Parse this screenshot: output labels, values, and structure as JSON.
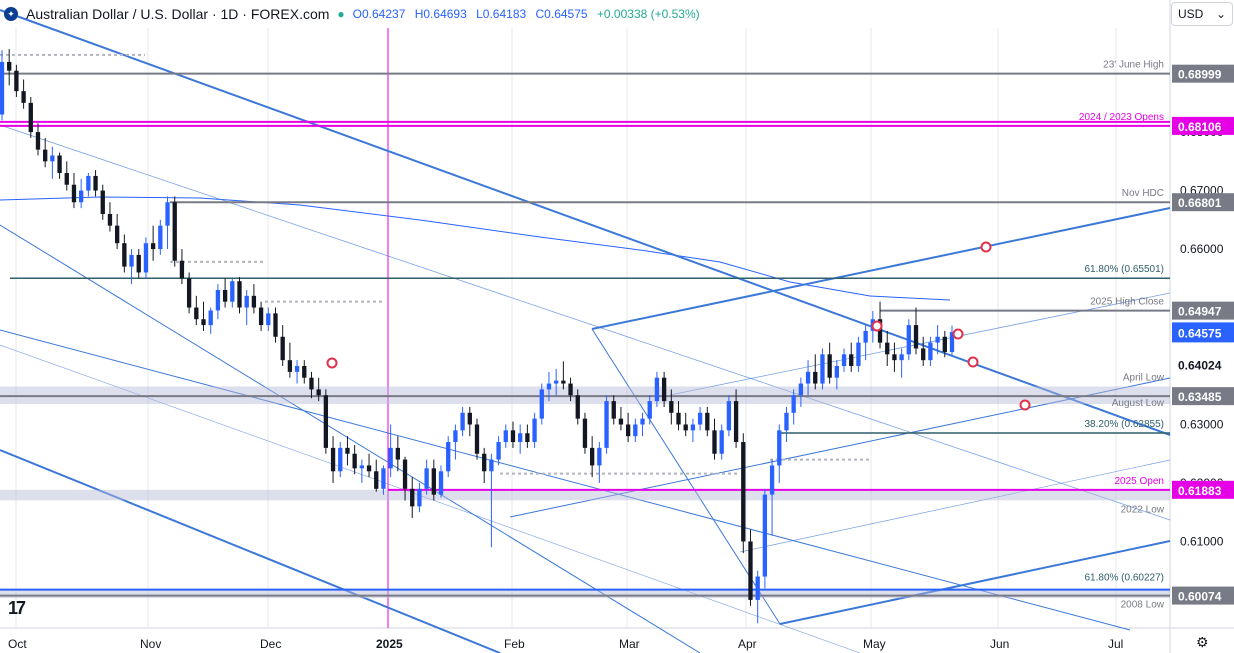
{
  "header": {
    "title": "Australian Dollar / U.S. Dollar · 1D · FOREX.com",
    "open": "O0.64237",
    "high": "H0.64693",
    "low": "L0.64183",
    "close": "C0.64575",
    "change": "+0.00338 (+0.53%)"
  },
  "currency_select": {
    "value": "USD"
  },
  "colors": {
    "up": "#2962ff",
    "down": "#131722",
    "trend": "#3c78d8",
    "magenta": "#e600e6",
    "teal": "#2f5f6a",
    "gray": "#787b86"
  },
  "chart_data": {
    "type": "candlestick",
    "ylim": [
      0.5952,
      0.6978
    ],
    "x_ticks": [
      "Oct",
      "Nov",
      "Dec",
      "2025",
      "Feb",
      "Mar",
      "Apr",
      "May",
      "Jun",
      "Jul"
    ],
    "y_ticks": [
      0.6,
      0.61,
      0.62,
      0.63,
      0.64,
      0.65,
      0.66,
      0.67,
      0.68
    ],
    "y_tick_labels": [
      "0.60000",
      "0.61000",
      "0.62000",
      "0.63000",
      "0.64000",
      "0.65000",
      "0.66000",
      "0.67000",
      "0.68000"
    ],
    "last_price": 0.64575,
    "last_price_label": "0.64575",
    "levels": [
      {
        "label": "23' June High",
        "value": 0.68999,
        "value_label": "0.68999",
        "color": "gray"
      },
      {
        "label": "2024 / 2023 Opens",
        "value": 0.68106,
        "value_label": "0.68106",
        "color": "magenta"
      },
      {
        "label": "Nov HDC",
        "value": 0.66801,
        "value_label": "0.66801",
        "color": "gray"
      },
      {
        "label": "61.80% (0.65501)",
        "value": 0.65501,
        "value_label": "",
        "color": "teal"
      },
      {
        "label": "2025 High Close",
        "value": 0.64947,
        "value_label": "0.64947",
        "color": "gray"
      },
      {
        "label": "",
        "value": 0.64024,
        "value_label": "0.64024",
        "color": "gray"
      },
      {
        "label": "April Low",
        "value": 0.6365,
        "value_label": "",
        "color": "gray"
      },
      {
        "label": "August Low",
        "value": 0.63485,
        "value_label": "0.63485",
        "color": "gray"
      },
      {
        "label": "38.20% (0.62855)",
        "value": 0.62855,
        "value_label": "",
        "color": "teal"
      },
      {
        "label": "2025 Open",
        "value": 0.61883,
        "value_label": "0.61883",
        "color": "magenta"
      },
      {
        "label": "2022 Low",
        "value": 0.61703,
        "value_label": "",
        "color": "gray"
      },
      {
        "label": "61.80% (0.60227)",
        "value": 0.60227,
        "value_label": "",
        "color": "teal"
      },
      {
        "label": "2008 Low",
        "value": 0.60074,
        "value_label": "0.60074",
        "color": "gray"
      }
    ],
    "candles": [
      [
        0.683,
        0.694,
        0.682,
        0.692
      ],
      [
        0.692,
        0.6942,
        0.688,
        0.6905
      ],
      [
        0.6905,
        0.6915,
        0.686,
        0.687
      ],
      [
        0.687,
        0.689,
        0.684,
        0.685
      ],
      [
        0.685,
        0.686,
        0.679,
        0.68
      ],
      [
        0.68,
        0.6815,
        0.676,
        0.677
      ],
      [
        0.677,
        0.679,
        0.674,
        0.675
      ],
      [
        0.675,
        0.6775,
        0.672,
        0.676
      ],
      [
        0.676,
        0.6765,
        0.672,
        0.673
      ],
      [
        0.673,
        0.675,
        0.67,
        0.671
      ],
      [
        0.671,
        0.673,
        0.667,
        0.668
      ],
      [
        0.668,
        0.672,
        0.667,
        0.67
      ],
      [
        0.67,
        0.673,
        0.669,
        0.6725
      ],
      [
        0.6725,
        0.6735,
        0.669,
        0.67
      ],
      [
        0.67,
        0.671,
        0.665,
        0.666
      ],
      [
        0.666,
        0.668,
        0.663,
        0.664
      ],
      [
        0.664,
        0.666,
        0.66,
        0.661
      ],
      [
        0.661,
        0.6625,
        0.656,
        0.657
      ],
      [
        0.657,
        0.66,
        0.654,
        0.659
      ],
      [
        0.659,
        0.66,
        0.655,
        0.656
      ],
      [
        0.656,
        0.662,
        0.655,
        0.661
      ],
      [
        0.661,
        0.664,
        0.658,
        0.66
      ],
      [
        0.66,
        0.665,
        0.659,
        0.664
      ],
      [
        0.664,
        0.669,
        0.66,
        0.668
      ],
      [
        0.668,
        0.669,
        0.657,
        0.658
      ],
      [
        0.658,
        0.66,
        0.654,
        0.655
      ],
      [
        0.655,
        0.656,
        0.649,
        0.65
      ],
      [
        0.65,
        0.652,
        0.647,
        0.648
      ],
      [
        0.648,
        0.651,
        0.646,
        0.647
      ],
      [
        0.647,
        0.65,
        0.6455,
        0.6495
      ],
      [
        0.6495,
        0.654,
        0.648,
        0.653
      ],
      [
        0.653,
        0.655,
        0.65,
        0.651
      ],
      [
        0.651,
        0.655,
        0.65,
        0.6545
      ],
      [
        0.6545,
        0.6552,
        0.649,
        0.65
      ],
      [
        0.65,
        0.653,
        0.647,
        0.652
      ],
      [
        0.652,
        0.654,
        0.649,
        0.65
      ],
      [
        0.65,
        0.651,
        0.646,
        0.647
      ],
      [
        0.647,
        0.65,
        0.646,
        0.649
      ],
      [
        0.649,
        0.65,
        0.644,
        0.645
      ],
      [
        0.645,
        0.647,
        0.64,
        0.641
      ],
      [
        0.641,
        0.644,
        0.638,
        0.639
      ],
      [
        0.639,
        0.641,
        0.637,
        0.64
      ],
      [
        0.64,
        0.641,
        0.637,
        0.638
      ],
      [
        0.638,
        0.639,
        0.6345,
        0.636
      ],
      [
        0.636,
        0.638,
        0.634,
        0.635
      ],
      [
        0.635,
        0.636,
        0.625,
        0.626
      ],
      [
        0.626,
        0.628,
        0.62,
        0.622
      ],
      [
        0.622,
        0.627,
        0.621,
        0.626
      ],
      [
        0.626,
        0.628,
        0.623,
        0.625
      ],
      [
        0.625,
        0.6265,
        0.6215,
        0.6225
      ],
      [
        0.6225,
        0.624,
        0.62,
        0.623
      ],
      [
        0.623,
        0.625,
        0.621,
        0.622
      ],
      [
        0.622,
        0.624,
        0.6185,
        0.619
      ],
      [
        0.619,
        0.623,
        0.618,
        0.6225
      ],
      [
        0.6225,
        0.63,
        0.621,
        0.626
      ],
      [
        0.626,
        0.628,
        0.622,
        0.624
      ],
      [
        0.624,
        0.6245,
        0.617,
        0.619
      ],
      [
        0.619,
        0.621,
        0.614,
        0.616
      ],
      [
        0.616,
        0.62,
        0.615,
        0.619
      ],
      [
        0.619,
        0.624,
        0.618,
        0.6225
      ],
      [
        0.6225,
        0.624,
        0.617,
        0.618
      ],
      [
        0.618,
        0.623,
        0.6175,
        0.622
      ],
      [
        0.622,
        0.628,
        0.621,
        0.627
      ],
      [
        0.627,
        0.63,
        0.624,
        0.629
      ],
      [
        0.629,
        0.633,
        0.628,
        0.632
      ],
      [
        0.632,
        0.633,
        0.628,
        0.63
      ],
      [
        0.63,
        0.631,
        0.624,
        0.625
      ],
      [
        0.625,
        0.626,
        0.62,
        0.622
      ],
      [
        0.622,
        0.625,
        0.609,
        0.624
      ],
      [
        0.624,
        0.628,
        0.623,
        0.627
      ],
      [
        0.627,
        0.63,
        0.626,
        0.629
      ],
      [
        0.629,
        0.6305,
        0.626,
        0.627
      ],
      [
        0.627,
        0.63,
        0.625,
        0.6285
      ],
      [
        0.6285,
        0.63,
        0.626,
        0.627
      ],
      [
        0.627,
        0.632,
        0.626,
        0.631
      ],
      [
        0.631,
        0.637,
        0.63,
        0.636
      ],
      [
        0.636,
        0.639,
        0.634,
        0.637
      ],
      [
        0.637,
        0.6395,
        0.635,
        0.6375
      ],
      [
        0.6375,
        0.6408,
        0.636,
        0.637
      ],
      [
        0.637,
        0.638,
        0.634,
        0.635
      ],
      [
        0.635,
        0.636,
        0.63,
        0.631
      ],
      [
        0.631,
        0.632,
        0.625,
        0.626
      ],
      [
        0.626,
        0.628,
        0.621,
        0.623
      ],
      [
        0.623,
        0.627,
        0.62,
        0.626
      ],
      [
        0.626,
        0.635,
        0.625,
        0.634
      ],
      [
        0.634,
        0.635,
        0.63,
        0.631
      ],
      [
        0.631,
        0.633,
        0.629,
        0.63
      ],
      [
        0.63,
        0.632,
        0.627,
        0.628
      ],
      [
        0.628,
        0.631,
        0.627,
        0.63
      ],
      [
        0.63,
        0.632,
        0.628,
        0.631
      ],
      [
        0.631,
        0.635,
        0.63,
        0.634
      ],
      [
        0.634,
        0.639,
        0.633,
        0.638
      ],
      [
        0.638,
        0.639,
        0.633,
        0.634
      ],
      [
        0.634,
        0.636,
        0.63,
        0.632
      ],
      [
        0.632,
        0.634,
        0.629,
        0.63
      ],
      [
        0.63,
        0.632,
        0.628,
        0.629
      ],
      [
        0.629,
        0.631,
        0.627,
        0.63
      ],
      [
        0.63,
        0.633,
        0.629,
        0.632
      ],
      [
        0.632,
        0.633,
        0.628,
        0.629
      ],
      [
        0.629,
        0.631,
        0.624,
        0.625
      ],
      [
        0.625,
        0.63,
        0.624,
        0.629
      ],
      [
        0.629,
        0.635,
        0.628,
        0.634
      ],
      [
        0.634,
        0.636,
        0.626,
        0.627
      ],
      [
        0.627,
        0.6285,
        0.608,
        0.61
      ],
      [
        0.61,
        0.612,
        0.599,
        0.6
      ],
      [
        0.6,
        0.605,
        0.596,
        0.604
      ],
      [
        0.604,
        0.619,
        0.602,
        0.618
      ],
      [
        0.618,
        0.624,
        0.611,
        0.623
      ],
      [
        0.623,
        0.63,
        0.62,
        0.629
      ],
      [
        0.629,
        0.633,
        0.627,
        0.632
      ],
      [
        0.632,
        0.636,
        0.63,
        0.635
      ],
      [
        0.635,
        0.638,
        0.633,
        0.637
      ],
      [
        0.637,
        0.641,
        0.635,
        0.639
      ],
      [
        0.639,
        0.642,
        0.636,
        0.637
      ],
      [
        0.637,
        0.643,
        0.636,
        0.642
      ],
      [
        0.642,
        0.644,
        0.637,
        0.638
      ],
      [
        0.638,
        0.641,
        0.636,
        0.64
      ],
      [
        0.64,
        0.643,
        0.639,
        0.642
      ],
      [
        0.642,
        0.644,
        0.639,
        0.64
      ],
      [
        0.64,
        0.645,
        0.639,
        0.644
      ],
      [
        0.644,
        0.647,
        0.641,
        0.646
      ],
      [
        0.646,
        0.6494,
        0.644,
        0.648
      ],
      [
        0.648,
        0.651,
        0.643,
        0.644
      ],
      [
        0.644,
        0.646,
        0.64,
        0.642
      ],
      [
        0.642,
        0.644,
        0.639,
        0.641
      ],
      [
        0.641,
        0.643,
        0.638,
        0.642
      ],
      [
        0.642,
        0.648,
        0.641,
        0.647
      ],
      [
        0.647,
        0.65,
        0.642,
        0.643
      ],
      [
        0.643,
        0.645,
        0.64,
        0.641
      ],
      [
        0.641,
        0.645,
        0.64,
        0.644
      ],
      [
        0.644,
        0.647,
        0.642,
        0.645
      ],
      [
        0.645,
        0.646,
        0.6415,
        0.6424
      ],
      [
        0.6424,
        0.6469,
        0.6418,
        0.6458
      ]
    ]
  }
}
